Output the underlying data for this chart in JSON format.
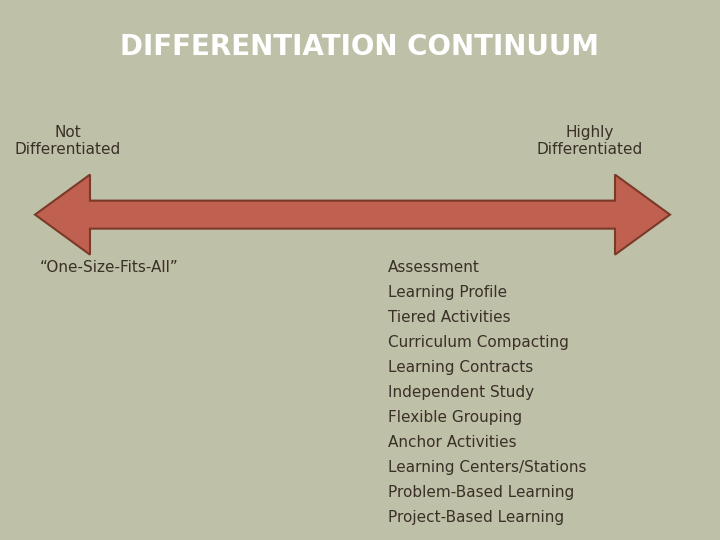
{
  "title": "DIFFERENTIATION CONTINUUM",
  "title_bg_color": "#4a3c3c",
  "title_text_color": "#ffffff",
  "body_bg_color": "#bfc0a8",
  "left_label": "Not\nDifferentiated",
  "right_label": "Highly\nDifferentiated",
  "left_item": "“One-Size-Fits-All”",
  "right_items": [
    "Assessment",
    "Learning Profile",
    "Tiered Activities",
    "Curriculum Compacting",
    "Learning Contracts",
    "Independent Study",
    "Flexible Grouping",
    "Anchor Activities",
    "Learning Centers/Stations",
    "Problem-Based Learning",
    "Project-Based Learning"
  ],
  "arrow_color": "#c06050",
  "arrow_edge_color": "#7a3a28",
  "text_color": "#3a3028",
  "title_fontsize": 20,
  "label_fontsize": 11,
  "item_fontsize": 11
}
